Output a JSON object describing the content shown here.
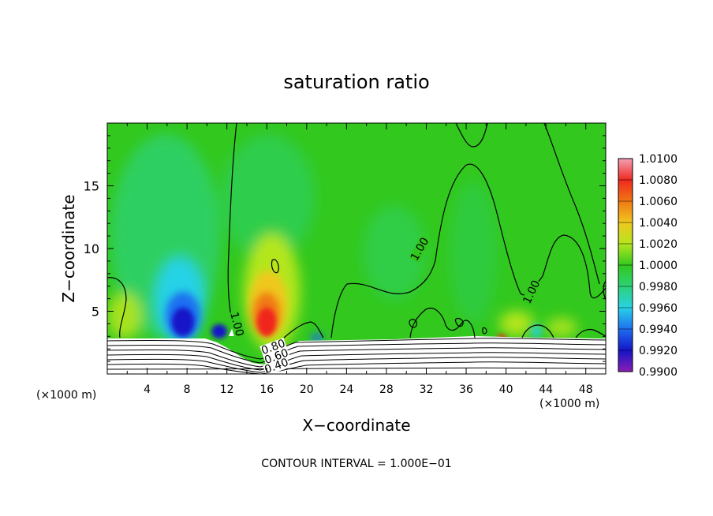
{
  "chart_data": {
    "type": "heatmap",
    "title": "saturation ratio",
    "xlabel": "X−coordinate",
    "ylabel": "Z−coordinate",
    "x_unit_left": "(×1000 m)",
    "x_unit_right": "(×1000 m)",
    "xlim": [
      0,
      50
    ],
    "ylim": [
      0,
      20
    ],
    "xticks": [
      4,
      8,
      12,
      16,
      20,
      24,
      28,
      32,
      36,
      40,
      44,
      48
    ],
    "yticks": [
      5,
      10,
      15
    ],
    "footer": "CONTOUR INTERVAL = 1.000E−01",
    "colorbar": {
      "levels": [
        {
          "label": "1.0100",
          "color": "#f2a0b4"
        },
        {
          "label": "1.0080",
          "color": "#f0281e"
        },
        {
          "label": "1.0060",
          "color": "#f07814"
        },
        {
          "label": "1.0040",
          "color": "#f0c81e"
        },
        {
          "label": "1.0020",
          "color": "#b4e61e"
        },
        {
          "label": "1.0000",
          "color": "#32c81e"
        },
        {
          "label": "0.9980",
          "color": "#2cd278"
        },
        {
          "label": "0.9960",
          "color": "#28d2e6"
        },
        {
          "label": "0.9940",
          "color": "#1e6ef0"
        },
        {
          "label": "0.9920",
          "color": "#1414c8"
        },
        {
          "label": "0.9900",
          "color": "#8c1eb4"
        }
      ]
    },
    "contour_labels": [
      {
        "text": "1.00",
        "x": 33,
        "y": 11
      },
      {
        "text": "1.00",
        "x": 43,
        "y": 6.8
      },
      {
        "text": "1.00",
        "x": 12.8,
        "y": 4.8
      },
      {
        "text": "0.80",
        "x": 17,
        "y": 2.1
      },
      {
        "text": "0.60",
        "x": 17.8,
        "y": 1.4
      },
      {
        "text": "0.40",
        "x": 17.2,
        "y": 0.7
      }
    ],
    "background_value": "1.0000",
    "notable_regions": [
      {
        "kind": "minimum",
        "value": "0.9920",
        "x": 8.5,
        "y": 4.5
      },
      {
        "kind": "maximum",
        "value": "1.0080",
        "x": 16,
        "y": 4.5
      }
    ]
  }
}
